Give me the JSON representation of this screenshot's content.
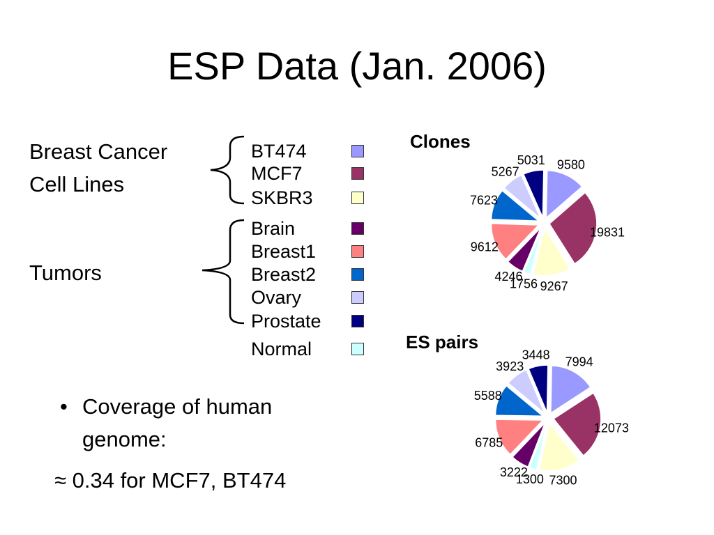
{
  "title": "ESP Data (Jan. 2006)",
  "groups": {
    "cell_lines_line1": "Breast Cancer",
    "cell_lines_line2": "Cell Lines",
    "tumors": "Tumors"
  },
  "legend": [
    {
      "label": "BT474",
      "color": "#9999ff"
    },
    {
      "label": "MCF7",
      "color": "#993366"
    },
    {
      "label": "SKBR3",
      "color": "#ffffcc"
    },
    {
      "label": "Brain",
      "color": "#660066"
    },
    {
      "label": "Breast1",
      "color": "#ff8080"
    },
    {
      "label": "Breast2",
      "color": "#0066cc"
    },
    {
      "label": "Ovary",
      "color": "#ccccff"
    },
    {
      "label": "Prostate",
      "color": "#000080"
    },
    {
      "label": "Normal",
      "color": "#ccffff"
    }
  ],
  "bullets": {
    "item1_line1": "Coverage of human",
    "item1_line2": "genome:",
    "item2": "≈ 0.34 for MCF7, BT474"
  },
  "chart_data": [
    {
      "type": "pie",
      "title": "Clones",
      "categories": [
        "BT474",
        "MCF7",
        "SKBR3",
        "Normal",
        "Brain",
        "Breast1",
        "Breast2",
        "Ovary",
        "Prostate"
      ],
      "values": [
        9580,
        19831,
        9267,
        1756,
        4246,
        9612,
        7623,
        5267,
        5031
      ]
    },
    {
      "type": "pie",
      "title": "ES pairs",
      "categories": [
        "BT474",
        "MCF7",
        "SKBR3",
        "Normal",
        "Brain",
        "Breast1",
        "Breast2",
        "Ovary",
        "Prostate"
      ],
      "values": [
        7994,
        12073,
        7300,
        1300,
        3222,
        6785,
        5588,
        3923,
        3448
      ]
    }
  ]
}
